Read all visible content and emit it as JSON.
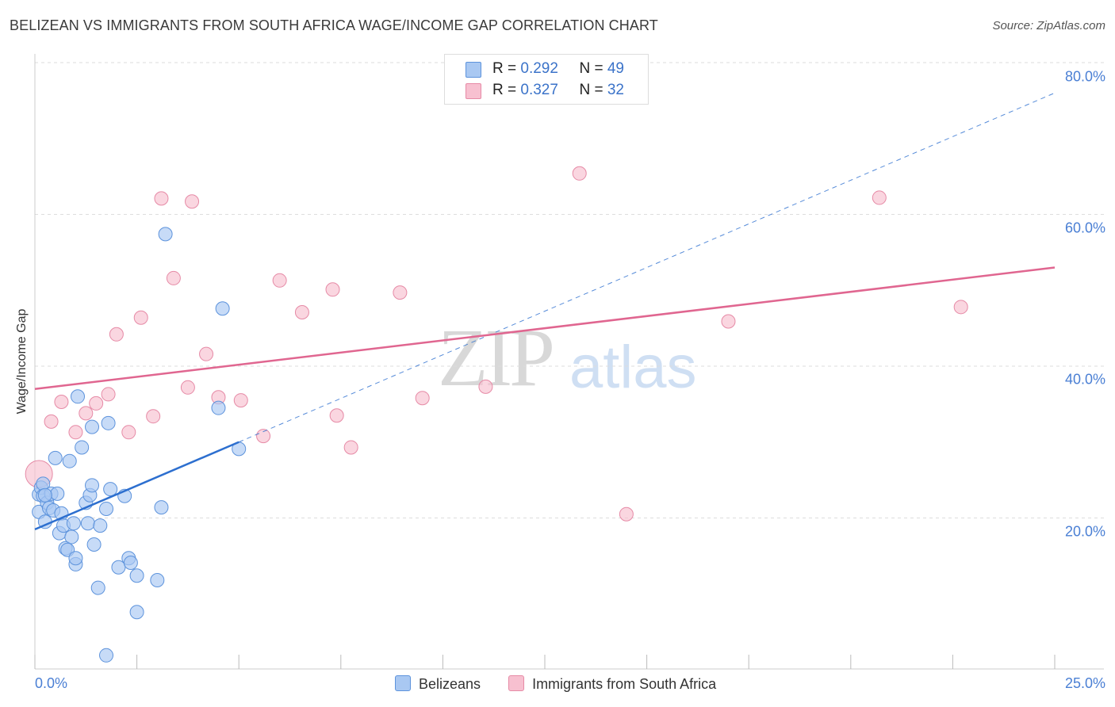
{
  "title": "BELIZEAN VS IMMIGRANTS FROM SOUTH AFRICA WAGE/INCOME GAP CORRELATION CHART",
  "source": "Source: ZipAtlas.com",
  "watermark": {
    "zip": "ZIP",
    "atlas": "atlas"
  },
  "legend_top": {
    "rows": [
      {
        "r_label": "R = ",
        "r_value": "0.292",
        "n_label": "N = ",
        "n_value": "49"
      },
      {
        "r_label": "R = ",
        "r_value": "0.327",
        "n_label": "N = ",
        "n_value": "32"
      }
    ]
  },
  "legend_bottom": [
    "Belizeans",
    "Immigrants from South Africa"
  ],
  "colors": {
    "blue_fill": "#a9c8f2",
    "blue_stroke": "#5d93dc",
    "blue_line": "#2d6fcf",
    "pink_fill": "#f7c0d0",
    "pink_stroke": "#e68aa6",
    "pink_line": "#e06690",
    "grid": "#dddddd",
    "tick_text": "#4a7fd4"
  },
  "chart_data": {
    "type": "scatter",
    "title": "BELIZEAN VS IMMIGRANTS FROM SOUTH AFRICA WAGE/INCOME GAP CORRELATION CHART",
    "xlabel": "",
    "ylabel": "Wage/Income Gap",
    "xlim": [
      0,
      25
    ],
    "ylim": [
      0,
      80
    ],
    "x_ticks": [
      "0.0%",
      "25.0%"
    ],
    "y_ticks": [
      {
        "value": 20,
        "label": "20.0%"
      },
      {
        "value": 40,
        "label": "40.0%"
      },
      {
        "value": 60,
        "label": "60.0%"
      },
      {
        "value": 80,
        "label": "80.0%"
      }
    ],
    "series": [
      {
        "name": "Belizeans",
        "r": 0.292,
        "n": 49,
        "points": [
          [
            0.1,
            20.8
          ],
          [
            0.1,
            23.1
          ],
          [
            0.15,
            24.0
          ],
          [
            0.2,
            24.5
          ],
          [
            0.2,
            22.9
          ],
          [
            0.25,
            19.5
          ],
          [
            0.3,
            22.0
          ],
          [
            0.35,
            21.3
          ],
          [
            0.4,
            23.2
          ],
          [
            0.45,
            21.0
          ],
          [
            0.5,
            27.9
          ],
          [
            0.55,
            23.2
          ],
          [
            0.6,
            18.0
          ],
          [
            0.65,
            20.6
          ],
          [
            0.7,
            19.0
          ],
          [
            0.75,
            16.0
          ],
          [
            0.8,
            15.8
          ],
          [
            0.85,
            27.5
          ],
          [
            0.9,
            17.5
          ],
          [
            0.95,
            19.3
          ],
          [
            1.0,
            13.9
          ],
          [
            1.0,
            14.7
          ],
          [
            1.05,
            36.0
          ],
          [
            1.15,
            29.3
          ],
          [
            1.25,
            22.0
          ],
          [
            1.3,
            19.3
          ],
          [
            1.35,
            23.0
          ],
          [
            1.4,
            24.3
          ],
          [
            1.4,
            32.0
          ],
          [
            1.45,
            16.5
          ],
          [
            1.55,
            10.8
          ],
          [
            1.6,
            19.0
          ],
          [
            1.75,
            1.9
          ],
          [
            1.75,
            21.2
          ],
          [
            1.8,
            32.5
          ],
          [
            1.85,
            23.8
          ],
          [
            2.05,
            13.5
          ],
          [
            2.2,
            22.9
          ],
          [
            2.3,
            14.7
          ],
          [
            2.35,
            14.1
          ],
          [
            2.5,
            12.4
          ],
          [
            2.5,
            7.6
          ],
          [
            3.0,
            11.8
          ],
          [
            3.1,
            21.4
          ],
          [
            3.2,
            57.4
          ],
          [
            4.5,
            34.5
          ],
          [
            4.6,
            47.6
          ],
          [
            5.0,
            29.1
          ],
          [
            0.25,
            23.0
          ]
        ],
        "trend": {
          "x": [
            0,
            5
          ],
          "y": [
            18.5,
            30.0
          ],
          "extended_to": [
            25,
            76.0
          ]
        }
      },
      {
        "name": "Immigrants from South Africa",
        "r": 0.327,
        "n": 32,
        "points": [
          [
            0.1,
            25.8
          ],
          [
            0.4,
            32.7
          ],
          [
            0.65,
            35.3
          ],
          [
            1.0,
            31.3
          ],
          [
            1.25,
            33.8
          ],
          [
            1.5,
            35.1
          ],
          [
            1.8,
            36.3
          ],
          [
            2.0,
            44.2
          ],
          [
            2.3,
            31.3
          ],
          [
            2.6,
            46.4
          ],
          [
            2.9,
            33.4
          ],
          [
            3.1,
            62.1
          ],
          [
            3.4,
            51.6
          ],
          [
            3.75,
            37.2
          ],
          [
            3.85,
            61.7
          ],
          [
            4.2,
            41.6
          ],
          [
            4.5,
            35.9
          ],
          [
            5.05,
            35.5
          ],
          [
            5.6,
            30.8
          ],
          [
            6.0,
            51.3
          ],
          [
            6.55,
            47.1
          ],
          [
            7.3,
            50.1
          ],
          [
            7.4,
            33.5
          ],
          [
            7.75,
            29.3
          ],
          [
            8.95,
            49.7
          ],
          [
            9.5,
            35.8
          ],
          [
            11.05,
            37.3
          ],
          [
            13.35,
            65.4
          ],
          [
            14.5,
            20.5
          ],
          [
            17.0,
            45.9
          ],
          [
            20.7,
            62.2
          ],
          [
            22.7,
            47.8
          ]
        ],
        "trend": {
          "x": [
            0,
            25
          ],
          "y": [
            37.0,
            53.0
          ]
        }
      }
    ]
  }
}
